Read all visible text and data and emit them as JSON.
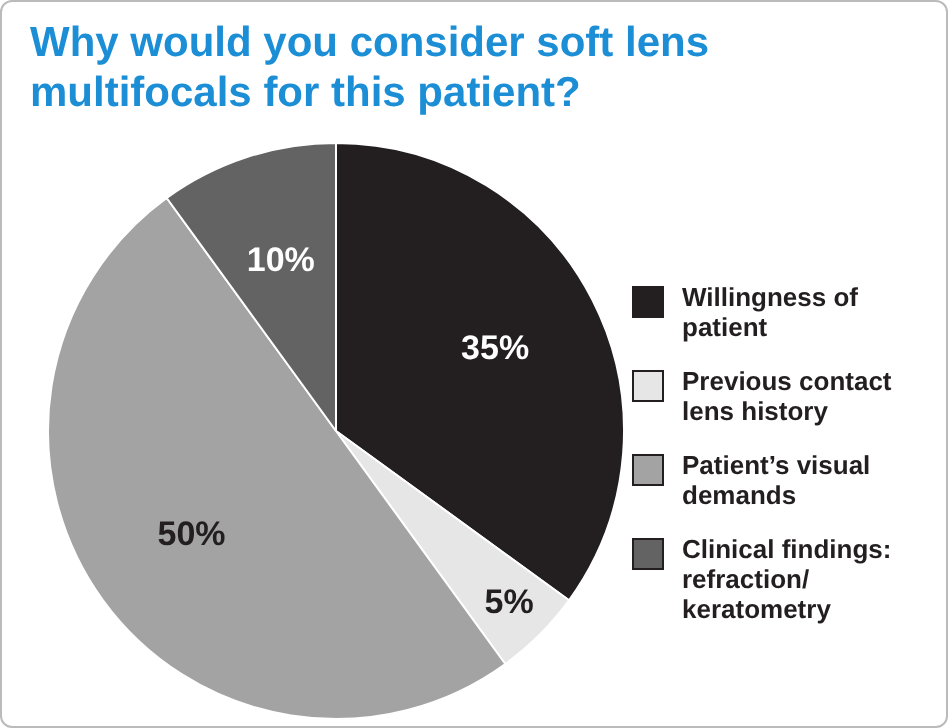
{
  "chart_data": {
    "type": "pie",
    "title": "Why would you consider soft lens multifocals for this patient?",
    "categories": [
      "Willingness of patient",
      "Previous contact lens history",
      "Patient’s visual demands",
      "Clinical findings: refraction/ keratometry"
    ],
    "values": [
      35,
      5,
      50,
      10
    ],
    "colors": [
      "#231f20",
      "#e6e6e6",
      "#a3a3a3",
      "#636363"
    ],
    "value_labels": [
      "35%",
      "5%",
      "50%",
      "10%"
    ],
    "legend": "right"
  }
}
